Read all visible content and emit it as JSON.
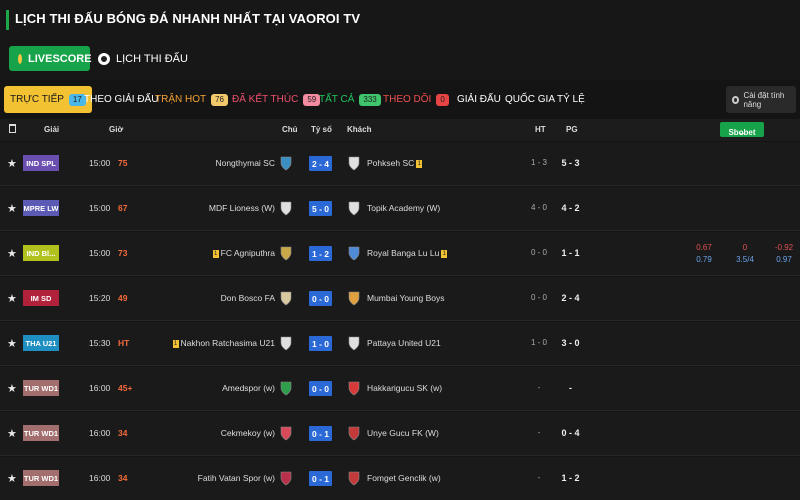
{
  "page": {
    "title": "LỊCH THI ĐẤU BÓNG ĐÁ NHANH NHẤT TẠI VAOROI TV"
  },
  "modes": {
    "livescore": "LIVESCORE",
    "schedule": "LỊCH THI ĐẤU"
  },
  "filters": [
    {
      "label": "TRỰC TIẾP",
      "badge": "17",
      "color": "#1a1a1a",
      "badge_bg": "#49b7e8"
    },
    {
      "label": "THEO GIẢI ĐẤU",
      "badge": "",
      "color": "#ffffff",
      "badge_bg": ""
    },
    {
      "label": "TRẬN HOT",
      "badge": "76",
      "color": "#f2a233",
      "badge_bg": "#f2c96b"
    },
    {
      "label": "ĐÃ KẾT THÚC",
      "badge": "59",
      "color": "#ef4f6e",
      "badge_bg": "#f28aa0"
    },
    {
      "label": "TẤT CẢ",
      "badge": "333",
      "color": "#22c55e",
      "badge_bg": "#3fc56b"
    },
    {
      "label": "THEO DÕI",
      "badge": "0",
      "color": "#ef4f4f",
      "badge_bg": "#e84444"
    },
    {
      "label": "GIẢI ĐẤU",
      "badge": "",
      "color": "#ffffff",
      "badge_bg": ""
    },
    {
      "label": "QUỐC GIA",
      "badge": "",
      "color": "#ffffff",
      "badge_bg": ""
    },
    {
      "label": "TỶ LỆ",
      "badge": "",
      "color": "#ffffff",
      "badge_bg": ""
    }
  ],
  "settings_label": "Cài đặt tính năng",
  "columns": {
    "league": "Giải",
    "time": "Giờ",
    "home": "Chủ",
    "score": "Tỷ số",
    "away": "Khách",
    "ht": "HT",
    "ft": "PG",
    "bookmaker": "Sbobet"
  },
  "matches": [
    {
      "league": "IND SPL",
      "league_color": "#6a4fb0",
      "time": "15:00",
      "minute": "75",
      "home": "Nongthymai SC",
      "home_card": "",
      "score": "2 - 4",
      "away": "Pohkseh SC",
      "away_card": "1",
      "ht": "1 - 3",
      "ft": "5 - 3",
      "home_logo": "#3b8fc2",
      "away_logo": "#e0e0e0",
      "odds": null
    },
    {
      "league": "MPRE LW",
      "league_color": "#5b5bb5",
      "time": "15:00",
      "minute": "67",
      "home": "MDF Lioness (W)",
      "home_card": "",
      "score": "5 - 0",
      "away": "Topik Academy (W)",
      "away_card": "",
      "ht": "4 - 0",
      "ft": "4 - 2",
      "home_logo": "#e0e0e0",
      "away_logo": "#e0e0e0",
      "odds": null
    },
    {
      "league": "IND Bl...",
      "league_color": "#b1c21e",
      "time": "15:00",
      "minute": "73",
      "home": "FC Agniputhra",
      "home_card": "1",
      "score": "1 - 2",
      "away": "Royal Banga Lu Lu",
      "away_card": "1",
      "ht": "0 - 0",
      "ft": "1 - 1",
      "home_logo": "#c9a84a",
      "away_logo": "#4f8ad6",
      "odds": {
        "top": [
          "0.67",
          "0",
          "-0.92"
        ],
        "bottom": [
          "0.79",
          "3.5/4",
          "0.97"
        ]
      }
    },
    {
      "league": "IM SD",
      "league_color": "#b0213a",
      "time": "15:20",
      "minute": "49",
      "home": "Don Bosco FA",
      "home_card": "",
      "score": "0 - 0",
      "away": "Mumbai Young Boys",
      "away_card": "",
      "ht": "0 - 0",
      "ft": "2 - 4",
      "home_logo": "#d8c9a0",
      "away_logo": "#e0a040",
      "odds": null
    },
    {
      "league": "THA U21",
      "league_color": "#1f8fc2",
      "time": "15:30",
      "minute": "HT",
      "home": "Nakhon Ratchasima U21",
      "home_card": "1",
      "score": "1 - 0",
      "away": "Pattaya United U21",
      "away_card": "",
      "ht": "1 - 0",
      "ft": "3 - 0",
      "home_logo": "#e0e0e0",
      "away_logo": "#e0e0e0",
      "odds": null
    },
    {
      "league": "TUR WD1",
      "league_color": "#a36e6e",
      "time": "16:00",
      "minute": "45+",
      "home": "Amedspor (w)",
      "home_card": "",
      "score": "0 - 0",
      "away": "Hakkarigucu SK (w)",
      "away_card": "",
      "ht": "-",
      "ft": "-",
      "home_logo": "#2e9e4a",
      "away_logo": "#d83a3a",
      "odds": null
    },
    {
      "league": "TUR WD1",
      "league_color": "#a36e6e",
      "time": "16:00",
      "minute": "34",
      "home": "Cekmekoy (w)",
      "home_card": "",
      "score": "0 - 1",
      "away": "Unye Gucu FK (W)",
      "away_card": "",
      "ht": "-",
      "ft": "0 - 4",
      "home_logo": "#d84a5a",
      "away_logo": "#c23a3a",
      "odds": null
    },
    {
      "league": "TUR WD1",
      "league_color": "#a36e6e",
      "time": "16:00",
      "minute": "34",
      "home": "Fatih Vatan Spor (w)",
      "home_card": "",
      "score": "0 - 1",
      "away": "Fomget Genclik (w)",
      "away_card": "",
      "ht": "-",
      "ft": "1 - 2",
      "home_logo": "#b8304a",
      "away_logo": "#c23a3a",
      "odds": null
    }
  ]
}
